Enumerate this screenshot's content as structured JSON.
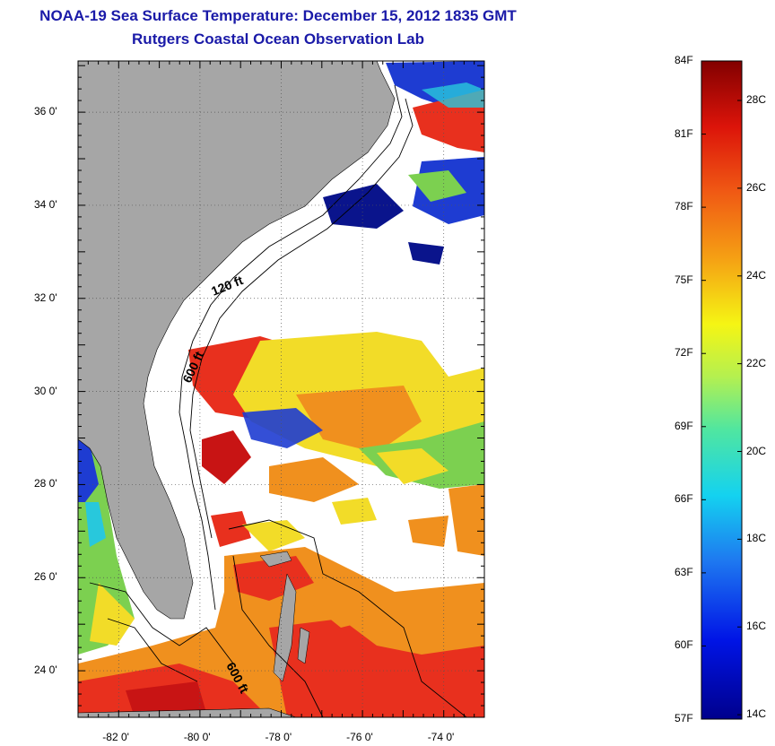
{
  "title": {
    "line1": "NOAA-19 Sea Surface Temperature:  December 15, 2012 1835 GMT",
    "line2": "Rutgers Coastal Ocean Observation Lab"
  },
  "map": {
    "lat_labels": [
      "36 0'",
      "34 0'",
      "32 0'",
      "30 0'",
      "28 0'",
      "26 0'",
      "24 0'"
    ],
    "lat_values": [
      36,
      34,
      32,
      30,
      28,
      26,
      24
    ],
    "lon_labels": [
      "-82 0'",
      "-80 0'",
      "-78 0'",
      "-76 0'",
      "-74 0'"
    ],
    "lon_values": [
      -82,
      -80,
      -78,
      -76,
      -74
    ],
    "lat_range": [
      23,
      37.1
    ],
    "lon_range": [
      -83,
      -73
    ],
    "contour_labels": [
      "120 ft",
      "600 ft",
      "600 ft"
    ],
    "colors": {
      "land": "#a6a6a6",
      "ocean_missing": "#ffffff",
      "warm": "#e8301e",
      "hot": "#c81414",
      "orange": "#f0901e",
      "yellow": "#f2dc28",
      "green": "#7cd050",
      "cyan": "#28c8dc",
      "blue": "#1e3cd2",
      "dark_blue": "#0a148c"
    }
  },
  "colorbar": {
    "fahrenheit_labels": [
      "84F",
      "81F",
      "78F",
      "75F",
      "72F",
      "69F",
      "66F",
      "63F",
      "60F",
      "57F"
    ],
    "celsius_labels": [
      "28C",
      "26C",
      "24C",
      "22C",
      "20C",
      "18C",
      "16C",
      "14C"
    ]
  }
}
